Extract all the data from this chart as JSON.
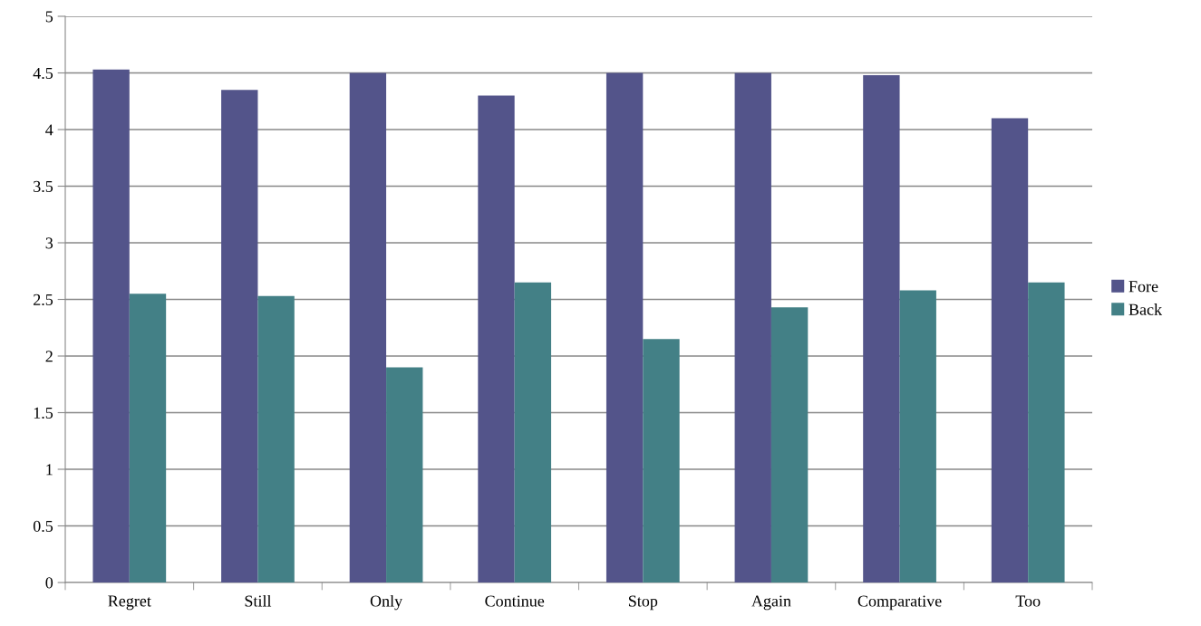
{
  "chart_data": {
    "type": "bar",
    "categories": [
      "Regret",
      "Still",
      "Only",
      "Continue",
      "Stop",
      "Again",
      "Comparative",
      "Too"
    ],
    "series": [
      {
        "name": "Fore",
        "color": "#53548a",
        "values": [
          4.53,
          4.35,
          4.5,
          4.3,
          4.5,
          4.5,
          4.48,
          4.1
        ]
      },
      {
        "name": "Back",
        "color": "#438086",
        "values": [
          2.55,
          2.53,
          1.9,
          2.65,
          2.15,
          2.43,
          2.58,
          2.65
        ]
      }
    ],
    "ylim": [
      0,
      5
    ],
    "yticks": [
      0,
      {
        "value": 0.5,
        "label": "0.5"
      },
      1,
      {
        "value": 1.5,
        "label": "1.5"
      },
      2,
      {
        "value": 2.5,
        "label": "2.5"
      },
      3,
      {
        "value": 3.5,
        "label": "3.5"
      },
      4,
      {
        "value": 4.5,
        "label": "4.5"
      },
      5
    ],
    "grid": "y",
    "legend": "right"
  }
}
